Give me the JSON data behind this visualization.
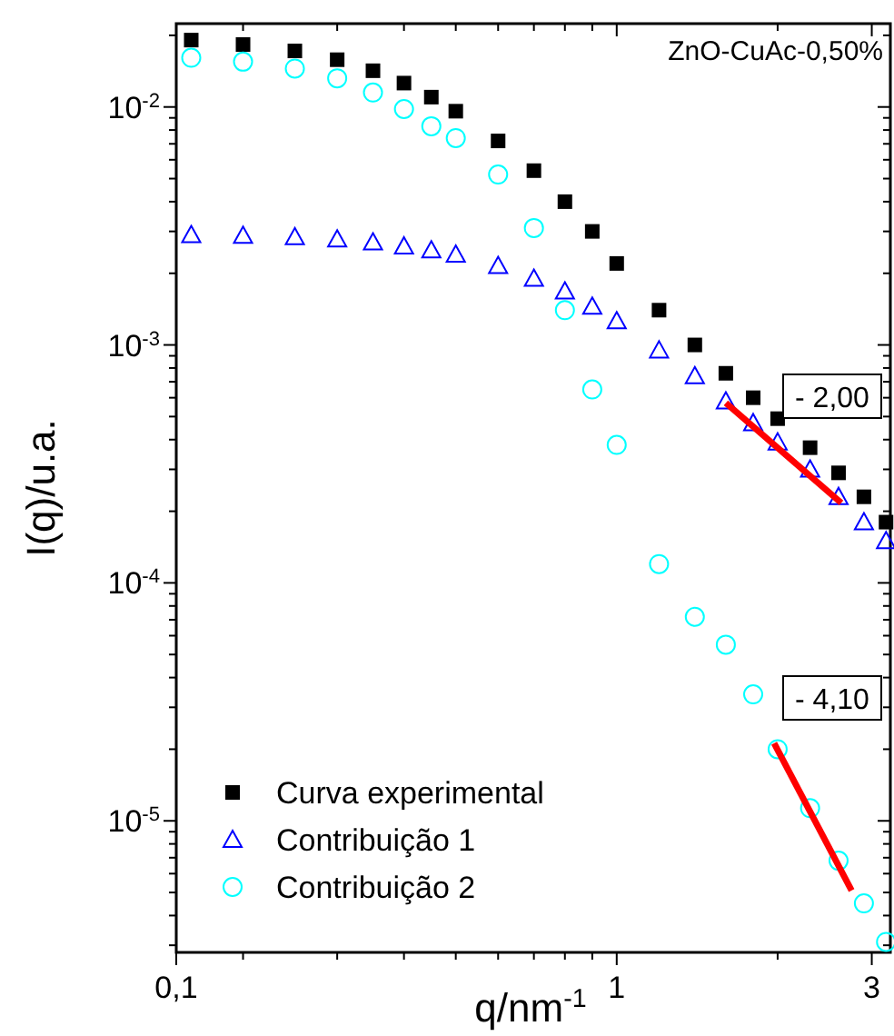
{
  "chart_data": {
    "type": "scatter",
    "title": "ZnO-CuAc-0,50%",
    "xlabel": "q/nm$^{-1}$",
    "ylabel": "I(q)/u.a.",
    "log": "xy",
    "legend": "bottom left",
    "grid": false,
    "xlim": [
      0.15,
      3.25
    ],
    "ylim": [
      2.8e-06,
      0.0224
    ],
    "xticks": [
      {
        "value": 0.15,
        "label": "0,1"
      },
      {
        "value": 0.2,
        "label": null
      },
      {
        "value": 0.3,
        "label": null
      },
      {
        "value": 0.4,
        "label": null
      },
      {
        "value": 0.5,
        "label": null
      },
      {
        "value": 0.6,
        "label": null
      },
      {
        "value": 0.7,
        "label": null
      },
      {
        "value": 0.8,
        "label": null
      },
      {
        "value": 0.9,
        "label": null
      },
      1,
      {
        "value": 2,
        "label": null
      },
      3
    ],
    "yticks": [
      {
        "value": 3e-06,
        "label": null
      },
      {
        "value": 4e-06,
        "label": null
      },
      {
        "value": 5e-06,
        "label": null
      },
      {
        "value": 6e-06,
        "label": null
      },
      {
        "value": 7e-06,
        "label": null
      },
      {
        "value": 8e-06,
        "label": null
      },
      {
        "value": 9e-06,
        "label": null
      },
      {
        "value": 1e-05,
        "label": "10$^{-5}$"
      },
      {
        "value": 2e-05,
        "label": null
      },
      {
        "value": 3e-05,
        "label": null
      },
      {
        "value": 4e-05,
        "label": null
      },
      {
        "value": 5e-05,
        "label": null
      },
      {
        "value": 6e-05,
        "label": null
      },
      {
        "value": 7e-05,
        "label": null
      },
      {
        "value": 8e-05,
        "label": null
      },
      {
        "value": 9e-05,
        "label": null
      },
      {
        "value": 0.0001,
        "label": "10$^{-4}$"
      },
      {
        "value": 0.0002,
        "label": null
      },
      {
        "value": 0.0003,
        "label": null
      },
      {
        "value": 0.0004,
        "label": null
      },
      {
        "value": 0.0005,
        "label": null
      },
      {
        "value": 0.0006,
        "label": null
      },
      {
        "value": 0.0007,
        "label": null
      },
      {
        "value": 0.0008,
        "label": null
      },
      {
        "value": 0.0009,
        "label": null
      },
      {
        "value": 0.001,
        "label": "10$^{-3}$"
      },
      {
        "value": 0.002,
        "label": null
      },
      {
        "value": 0.003,
        "label": null
      },
      {
        "value": 0.004,
        "label": null
      },
      {
        "value": 0.005,
        "label": null
      },
      {
        "value": 0.006,
        "label": null
      },
      {
        "value": 0.007,
        "label": null
      },
      {
        "value": 0.008,
        "label": null
      },
      {
        "value": 0.009,
        "label": null
      },
      {
        "value": 0.01,
        "label": "10$^{-2}$"
      },
      {
        "value": 0.02,
        "label": null
      }
    ],
    "x": [
      0.16,
      0.2,
      0.25,
      0.3,
      0.35,
      0.4,
      0.45,
      0.5,
      0.6,
      0.7,
      0.8,
      0.9,
      1.0,
      1.2,
      1.4,
      1.6,
      1.8,
      2.0,
      2.3,
      2.6,
      2.9,
      3.19
    ],
    "series": [
      {
        "name": "Curva experimental",
        "marker": "square",
        "color": "#000000",
        "values": [
          0.0191,
          0.0183,
          0.0172,
          0.0158,
          0.0142,
          0.0126,
          0.011,
          0.0096,
          0.0072,
          0.0054,
          0.004,
          0.003,
          0.0022,
          0.0014,
          0.001,
          0.00076,
          0.0006,
          0.00049,
          0.00037,
          0.00029,
          0.00023,
          0.00018
        ]
      },
      {
        "name": "Contribuição 1",
        "marker": "triangle",
        "color": "#0000ff",
        "values": [
          0.0029,
          0.00288,
          0.00284,
          0.00278,
          0.0027,
          0.0026,
          0.0025,
          0.0024,
          0.00215,
          0.0019,
          0.00168,
          0.00145,
          0.00126,
          0.00095,
          0.00074,
          0.00058,
          0.00047,
          0.00039,
          0.0003,
          0.00023,
          0.00018,
          0.00015
        ]
      },
      {
        "name": "Contribuição 2",
        "marker": "circle",
        "color": "#00ffff",
        "values": [
          0.0161,
          0.0155,
          0.0145,
          0.0132,
          0.0115,
          0.0098,
          0.0083,
          0.0074,
          0.0052,
          0.0031,
          0.0014,
          0.00065,
          0.00038,
          0.00012,
          7.2e-05,
          5.5e-05,
          3.4e-05,
          2e-05,
          1.13e-05,
          6.8e-06,
          4.5e-06,
          3.1e-06
        ]
      },
      {
        "type": "line",
        "marker": "none",
        "color": "#ff0000",
        "x": [
          1.6,
          2.63
        ],
        "values": [
          0.00057,
          0.000217
        ]
      },
      {
        "type": "line",
        "marker": "none",
        "color": "#ff0000",
        "x": [
          1.97,
          2.75
        ],
        "values": [
          2.12e-05,
          5.1e-06
        ]
      }
    ],
    "annotations": [
      "- 2,00",
      "- 4,10"
    ]
  }
}
